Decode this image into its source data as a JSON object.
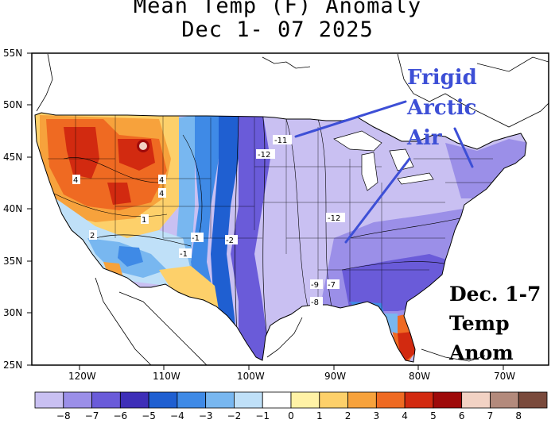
{
  "title": {
    "line1": "Mean Temp (F) Anomaly",
    "line2": "Dec 1- 07 2025"
  },
  "latitudes": [
    "55N",
    "50N",
    "45N",
    "40N",
    "35N",
    "30N",
    "25N"
  ],
  "longitudes": [
    "120W",
    "110W",
    "100W",
    "90W",
    "80W",
    "70W"
  ],
  "annotation_main": [
    "Frigid",
    "Arctic",
    "Air"
  ],
  "annotation_box": [
    "Dec. 1-7",
    "Temp",
    "Anom"
  ],
  "contour_labels": [
    "-11",
    "-12",
    "-12",
    "-9",
    "-7",
    "-8",
    "4",
    "4",
    "4",
    "1",
    "2",
    "-1",
    "-1",
    "-2"
  ],
  "colorbar": {
    "labels": [
      "-8",
      "-7",
      "-6",
      "-5",
      "-4",
      "-3",
      "-2",
      "-1",
      "0",
      "1",
      "2",
      "3",
      "4",
      "5",
      "6",
      "7",
      "8"
    ],
    "colors": [
      "#c9c0f2",
      "#9b8fe8",
      "#6a5bd9",
      "#3e2fb8",
      "#1f5fd1",
      "#3f8ae6",
      "#78b7f0",
      "#bfe0f8",
      "#ffffff",
      "#fff2a6",
      "#fdd06a",
      "#f7a23c",
      "#ef6a22",
      "#d22a10",
      "#9e0a0a",
      "#f2d2c4",
      "#b38a7c",
      "#7a4a3c"
    ]
  },
  "annotation_color": "#3d4fd6"
}
